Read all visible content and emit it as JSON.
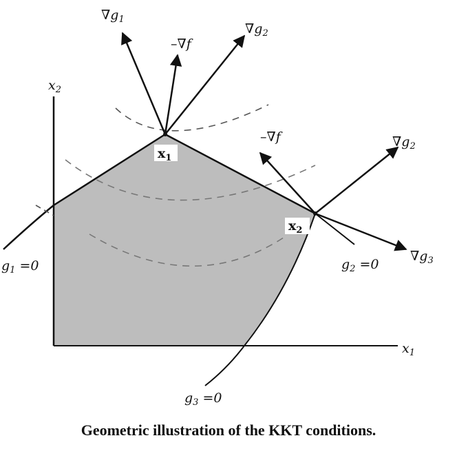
{
  "axes": {
    "x_label": "x",
    "x_sub": "1",
    "y_label": "x",
    "y_sub": "2"
  },
  "constraints": [
    {
      "name": "g",
      "sub": "1",
      "rhs": " =0"
    },
    {
      "name": "g",
      "sub": "2",
      "rhs": " =0"
    },
    {
      "name": "g",
      "sub": "3",
      "rhs": " =0"
    }
  ],
  "points": [
    {
      "name": "x",
      "sub": "1"
    },
    {
      "name": "x",
      "sub": "2"
    }
  ],
  "vectors": {
    "grad_g1_at_x1": {
      "sym": "∇",
      "name": "g",
      "sub": "1"
    },
    "neg_grad_f_at_x1": {
      "sym": "–∇",
      "name": "f",
      "sub": ""
    },
    "grad_g2_at_x1": {
      "sym": "∇",
      "name": "g",
      "sub": "2"
    },
    "neg_grad_f_at_x2": {
      "sym": "–∇",
      "name": "f",
      "sub": ""
    },
    "grad_g2_at_x2": {
      "sym": "∇",
      "name": "g",
      "sub": "2"
    },
    "grad_g3_at_x2": {
      "sym": "∇",
      "name": "g",
      "sub": "3"
    }
  },
  "colors": {
    "feasible_fill": "#bdbdbd",
    "ink": "#111111",
    "contour": "#555555"
  },
  "caption": "Geometric illustration of the KKT conditions."
}
